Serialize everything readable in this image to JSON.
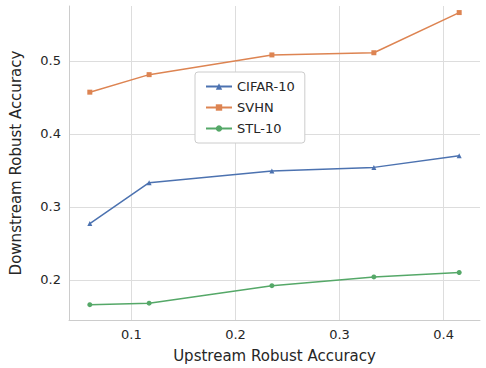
{
  "chart_data": {
    "type": "line",
    "xlabel": "Upstream Robust Accuracy",
    "ylabel": "Downstream Robust Accuracy",
    "series": [
      {
        "name": "CIFAR-10",
        "color": "#4c72b0",
        "marker": "triangle",
        "x": [
          0.06,
          0.117,
          0.235,
          0.333,
          0.415
        ],
        "values": [
          0.277,
          0.333,
          0.349,
          0.354,
          0.37
        ]
      },
      {
        "name": "SVHN",
        "color": "#dd8452",
        "marker": "square",
        "x": [
          0.06,
          0.117,
          0.235,
          0.333,
          0.415
        ],
        "values": [
          0.457,
          0.481,
          0.508,
          0.511,
          0.566
        ]
      },
      {
        "name": "STL-10",
        "color": "#55a868",
        "marker": "circle",
        "x": [
          0.06,
          0.117,
          0.235,
          0.333,
          0.415
        ],
        "values": [
          0.166,
          0.168,
          0.192,
          0.204,
          0.21
        ]
      }
    ],
    "xlim": [
      0.04,
      0.435
    ],
    "xticks": [
      0.1,
      0.2,
      0.3,
      0.4
    ],
    "ylim": [
      0.145,
      0.575
    ],
    "yticks": [
      0.2,
      0.3,
      0.4,
      0.5
    ],
    "grid": true,
    "legend": "center"
  }
}
